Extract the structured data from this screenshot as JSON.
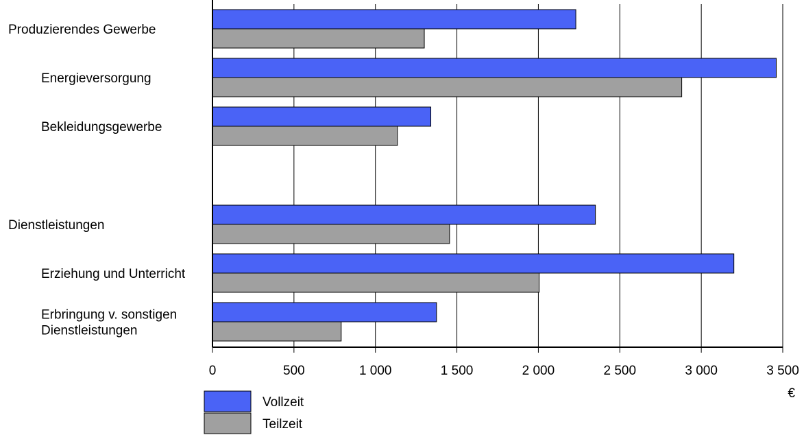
{
  "chart_data": {
    "type": "bar",
    "orientation": "horizontal",
    "title": "",
    "xlabel": "",
    "ylabel": "",
    "unit_label": "€",
    "xlim": [
      0,
      3500
    ],
    "x_ticks": [
      0,
      500,
      1000,
      1500,
      2000,
      2500,
      3000,
      3500
    ],
    "x_tick_labels": [
      "0",
      "500",
      "1 000",
      "1 500",
      "2 000",
      "2 500",
      "3 000",
      "3 500"
    ],
    "grid": "vertical",
    "legend_position": "bottom-left",
    "categories": [
      {
        "label": [
          "Produzierendes Gewerbe"
        ],
        "indent": false
      },
      {
        "label": [
          "Energieversorgung"
        ],
        "indent": true
      },
      {
        "label": [
          "Bekleidungsgewerbe"
        ],
        "indent": true
      },
      {
        "label": [
          "Dienstleistungen"
        ],
        "indent": false
      },
      {
        "label": [
          "Erziehung und Unterricht"
        ],
        "indent": true
      },
      {
        "label": [
          "Erbringung v. sonstigen",
          "Dienstleistungen"
        ],
        "indent": true
      }
    ],
    "group_gap_after_index": 2,
    "series": [
      {
        "name": "Vollzeit",
        "color": "#4a63f6",
        "values": [
          2230,
          3460,
          1340,
          2350,
          3200,
          1375
        ]
      },
      {
        "name": "Teilzeit",
        "color": "#a0a0a0",
        "values": [
          1300,
          2880,
          1135,
          1455,
          2005,
          790
        ]
      }
    ]
  }
}
